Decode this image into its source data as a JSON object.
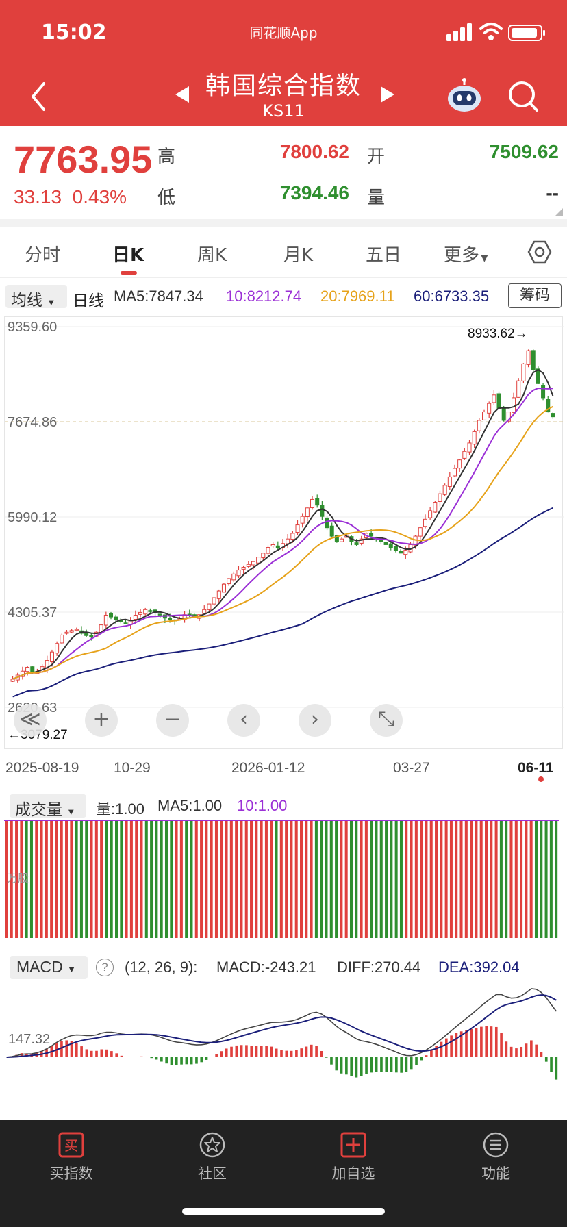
{
  "status_bar": {
    "time": "15:02",
    "app_label": "同花顺App"
  },
  "header": {
    "title": "韩国综合指数",
    "code": "KS11"
  },
  "quote": {
    "price": "7763.95",
    "change": "33.13",
    "change_pct": "0.43%",
    "high_label": "高",
    "high": "7800.62",
    "low_label": "低",
    "low": "7394.46",
    "open_label": "开",
    "open": "7509.62",
    "volume_label": "量",
    "volume": "--"
  },
  "colors": {
    "up": "#e0403d",
    "down": "#2f8f2f",
    "header": "#e0403d",
    "ma5": "#333333",
    "ma10": "#9b30d6",
    "ma20": "#e6a21a",
    "ma60": "#1b1f7a"
  },
  "tabs": [
    {
      "label": "分时",
      "active": false
    },
    {
      "label": "日K",
      "active": true
    },
    {
      "label": "周K",
      "active": false
    },
    {
      "label": "月K",
      "active": false
    },
    {
      "label": "五日",
      "active": false
    },
    {
      "label": "更多",
      "active": false
    }
  ],
  "ma_bar": {
    "selector": "均线",
    "type": "日线",
    "ma5": "MA5:7847.34",
    "ma10": "10:8212.74",
    "ma20": "20:7969.11",
    "ma60": "60:6733.35",
    "chip_button": "筹码"
  },
  "kline": {
    "y_labels": [
      "9359.60",
      "7674.86",
      "5990.12",
      "4305.37",
      "2620.63"
    ],
    "max_annotation": "8933.62",
    "min_annotation": "3079.27",
    "dates": [
      "2025-08-19",
      "10-29",
      "2026-01-12",
      "03-27",
      "06-11"
    ]
  },
  "zoom_controls": [
    "≪",
    "+",
    "−",
    "‹",
    "›",
    "⤡"
  ],
  "volume": {
    "selector": "成交量",
    "vol": "量:1.00",
    "ma5": "MA5:1.00",
    "ma10": "10:1.00",
    "axis_label": "万股"
  },
  "macd": {
    "selector": "MACD",
    "params": "(12, 26, 9):",
    "macd": "MACD:-243.21",
    "diff": "DIFF:270.44",
    "dea": "DEA:392.04",
    "axis_label": "147.32"
  },
  "chart_data": {
    "type": "candlestick",
    "ylim": [
      2620.63,
      9359.6
    ],
    "x_ticks": [
      "2025-08-19",
      "10-29",
      "2026-01-12",
      "03-27",
      "06-11"
    ],
    "max": 8933.62,
    "min": 3079.27,
    "close_trend": [
      3120,
      3190,
      3260,
      3330,
      3250,
      3240,
      3340,
      3450,
      3600,
      3750,
      3900,
      3950,
      3980,
      4000,
      3930,
      3890,
      3870,
      3950,
      4080,
      4250,
      4220,
      4170,
      4130,
      4100,
      4150,
      4250,
      4300,
      4350,
      4330,
      4300,
      4260,
      4200,
      4170,
      4150,
      4200,
      4260,
      4240,
      4220,
      4260,
      4350,
      4450,
      4560,
      4680,
      4800,
      4900,
      4980,
      5050,
      5100,
      5150,
      5200,
      5280,
      5350,
      5450,
      5500,
      5450,
      5520,
      5600,
      5700,
      5850,
      6000,
      6150,
      6300,
      6200,
      6000,
      5800,
      5650,
      5550,
      5600,
      5650,
      5550,
      5500,
      5600,
      5700,
      5650,
      5600,
      5550,
      5500,
      5450,
      5400,
      5350,
      5400,
      5500,
      5650,
      5800,
      5950,
      6100,
      6250,
      6400,
      6550,
      6700,
      6850,
      7000,
      7150,
      7300,
      7500,
      7700,
      7850,
      8000,
      8150,
      7900,
      7700,
      7850,
      8100,
      8400,
      8700,
      8933,
      8600,
      8350,
      8100,
      7850,
      7764
    ]
  }
}
